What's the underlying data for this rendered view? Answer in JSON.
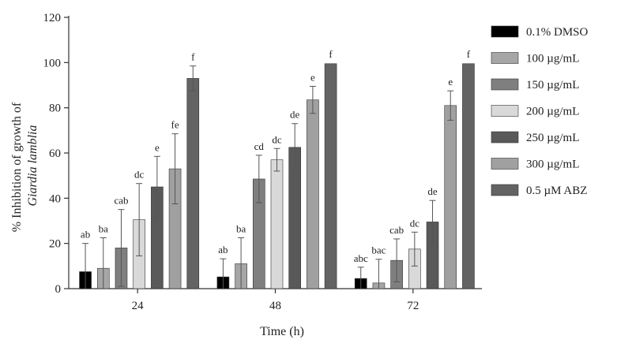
{
  "chart_data": {
    "type": "bar",
    "xlabel": "Time (h)",
    "ylabel_prefix": "% Inhibition of growth of",
    "ylabel_italic": "Giardia lamblia",
    "ylim": [
      0,
      120
    ],
    "yticks": [
      0,
      20,
      40,
      60,
      80,
      100,
      120
    ],
    "categories": [
      "24",
      "48",
      "72"
    ],
    "legend_position": "right",
    "grid": false,
    "series": [
      {
        "name": "0.1% DMSO",
        "color": "#000000",
        "values": [
          7.5,
          5.2,
          4.5
        ],
        "errors": [
          12.5,
          8.0,
          5.0
        ],
        "labels": [
          "ab",
          "ab",
          "abc"
        ]
      },
      {
        "name": "100 µg/mL",
        "color": "#a6a6a6",
        "values": [
          9.0,
          11.0,
          2.5
        ],
        "errors": [
          13.5,
          11.5,
          10.5
        ],
        "labels": [
          "ba",
          "ba",
          "bac"
        ]
      },
      {
        "name": "150 µg/mL",
        "color": "#7f7f7f",
        "values": [
          18.0,
          48.5,
          12.5
        ],
        "errors": [
          17.0,
          10.5,
          9.5
        ],
        "labels": [
          "cab",
          "cd",
          "cab"
        ]
      },
      {
        "name": "200 µg/mL",
        "color": "#d9d9d9",
        "values": [
          30.5,
          57.0,
          17.5
        ],
        "errors": [
          16.0,
          5.0,
          7.5
        ],
        "labels": [
          "dc",
          "dc",
          "dc"
        ]
      },
      {
        "name": "250 µg/mL",
        "color": "#595959",
        "values": [
          45.0,
          62.5,
          29.5
        ],
        "errors": [
          13.5,
          10.5,
          9.5
        ],
        "labels": [
          "e",
          "de",
          "de"
        ]
      },
      {
        "name": "300 µg/mL",
        "color": "#a0a0a0",
        "values": [
          53.0,
          83.5,
          81.0
        ],
        "errors": [
          15.5,
          6.0,
          6.5
        ],
        "labels": [
          "fe",
          "e",
          "e"
        ]
      },
      {
        "name": "0.5 µM ABZ",
        "color": "#636363",
        "values": [
          93.0,
          99.5,
          99.5
        ],
        "errors": [
          5.5,
          0.3,
          0.3
        ],
        "labels": [
          "f",
          "f",
          "f"
        ]
      }
    ]
  }
}
